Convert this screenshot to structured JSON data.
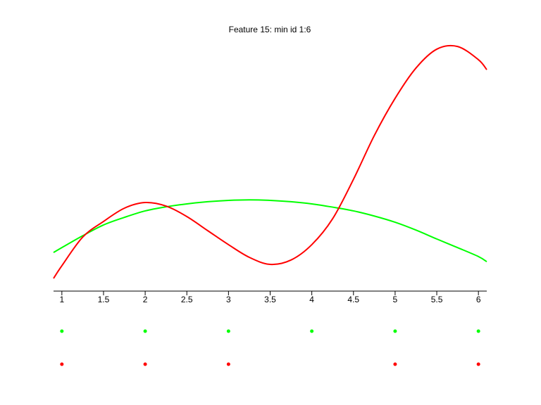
{
  "chart_data": {
    "type": "line",
    "title": "Feature 15: min id 1:6",
    "x": [
      0.9,
      1,
      1.25,
      1.5,
      1.75,
      2,
      2.25,
      2.5,
      2.75,
      3,
      3.25,
      3.5,
      3.75,
      4,
      4.25,
      4.5,
      4.75,
      5,
      5.25,
      5.5,
      5.75,
      6,
      6.1
    ],
    "series": [
      {
        "color": "#00ff00",
        "values": [
          0.143,
          0.161,
          0.205,
          0.245,
          0.273,
          0.297,
          0.312,
          0.323,
          0.331,
          0.336,
          0.338,
          0.336,
          0.331,
          0.323,
          0.311,
          0.297,
          0.278,
          0.255,
          0.226,
          0.193,
          0.161,
          0.128,
          0.109
        ]
      },
      {
        "color": "#ff0000",
        "values": [
          0.047,
          0.094,
          0.2,
          0.258,
          0.307,
          0.328,
          0.315,
          0.276,
          0.224,
          0.172,
          0.125,
          0.099,
          0.115,
          0.172,
          0.268,
          0.414,
          0.576,
          0.714,
          0.826,
          0.896,
          0.906,
          0.857,
          0.82
        ]
      }
    ],
    "dot_rows": [
      {
        "color": "#00ff00",
        "x": [
          1,
          2,
          3,
          4,
          5,
          6
        ]
      },
      {
        "color": "#ff0000",
        "x": [
          1,
          2,
          3,
          5,
          6
        ]
      }
    ],
    "xlim": [
      0.9,
      6.1
    ],
    "ylim": [
      0,
      1
    ],
    "xticks": [
      1,
      1.5,
      2,
      2.5,
      3,
      3.5,
      4,
      4.5,
      5,
      5.5,
      6
    ]
  }
}
